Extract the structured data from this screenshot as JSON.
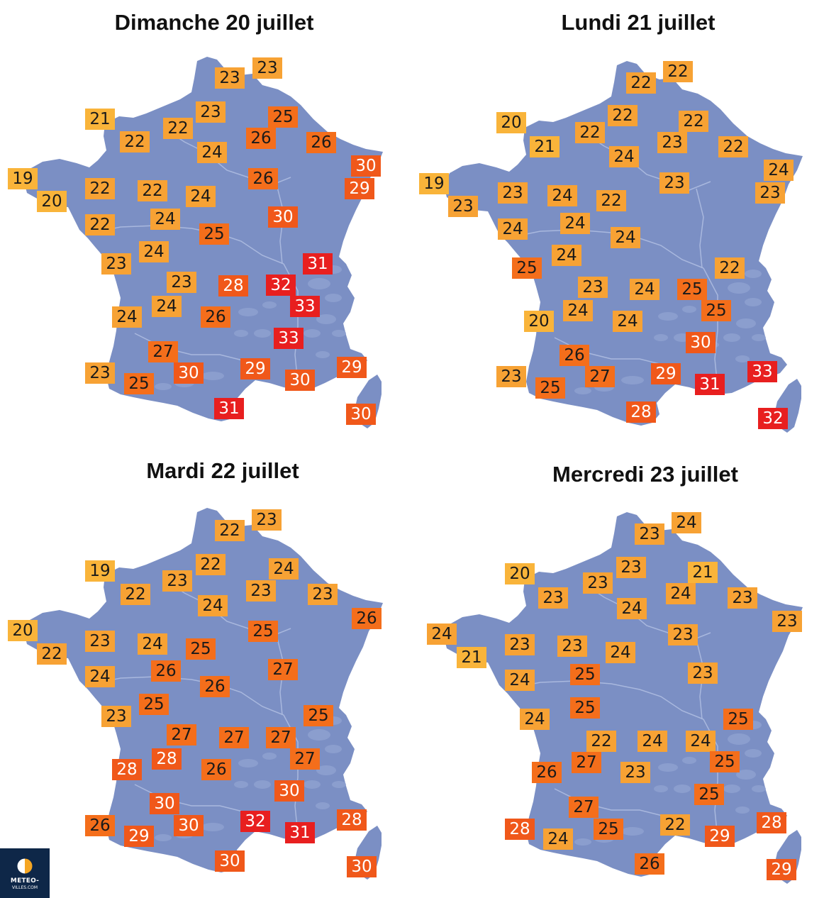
{
  "colors": {
    "land": "#7b8fc4",
    "relief": "#93a4d3",
    "river": "#a9b8de",
    "bands": {
      "t19_21": "#f9b43a",
      "t22_24": "#f7a234",
      "t25_27": "#f46e1b",
      "t28_30": "#f0581a",
      "t31_33": "#e81f1f"
    }
  },
  "maps": [
    {
      "title": "Dimanche 20 juillet",
      "temps": [
        "23",
        "23",
        "21",
        "23",
        "22",
        "25",
        "22",
        "26",
        "26",
        "24",
        "19",
        "26",
        "30",
        "22",
        "22",
        "24",
        "20",
        "29",
        "24",
        "22",
        "30",
        "25",
        "24",
        "31",
        "23",
        "23",
        "28",
        "32",
        "24",
        "33",
        "24",
        "26",
        "33",
        "27",
        "23",
        "30",
        "29",
        "29",
        "25",
        "30",
        "31",
        "30"
      ]
    },
    {
      "title": "Lundi 21 juillet",
      "temps": [
        "22",
        "22",
        "20",
        "22",
        "22",
        "22",
        "21",
        "23",
        "22",
        "24",
        "24",
        "19",
        "23",
        "23",
        "24",
        "22",
        "23",
        "24",
        "24",
        "25",
        "23",
        "24",
        "24",
        "22",
        "23",
        "24",
        "25",
        "24",
        "25",
        "24",
        "20",
        "30",
        "26",
        "27",
        "23",
        "29",
        "33",
        "25",
        "31",
        "28",
        "32"
      ]
    },
    {
      "title": "Mardi 22 juillet",
      "temps": [
        "23",
        "22",
        "19",
        "22",
        "22",
        "24",
        "23",
        "23",
        "23",
        "24",
        "26",
        "20",
        "25",
        "22",
        "23",
        "24",
        "25",
        "26",
        "24",
        "27",
        "26",
        "25",
        "23",
        "25",
        "27",
        "27",
        "27",
        "28",
        "28",
        "27",
        "26",
        "30",
        "30",
        "30",
        "26",
        "32",
        "28",
        "29",
        "31",
        "30",
        "30"
      ]
    },
    {
      "title": "Mercredi 23 juillet",
      "temps": [
        "24",
        "23",
        "20",
        "23",
        "23",
        "21",
        "23",
        "24",
        "23",
        "24",
        "23",
        "24",
        "23",
        "21",
        "23",
        "23",
        "24",
        "25",
        "24",
        "23",
        "25",
        "24",
        "22",
        "25",
        "24",
        "24",
        "26",
        "27",
        "25",
        "23",
        "25",
        "27",
        "25",
        "28",
        "22",
        "28",
        "24",
        "29",
        "26",
        "29"
      ]
    }
  ],
  "logo": {
    "line1": "METEO-",
    "line2": "VILLES.COM"
  }
}
